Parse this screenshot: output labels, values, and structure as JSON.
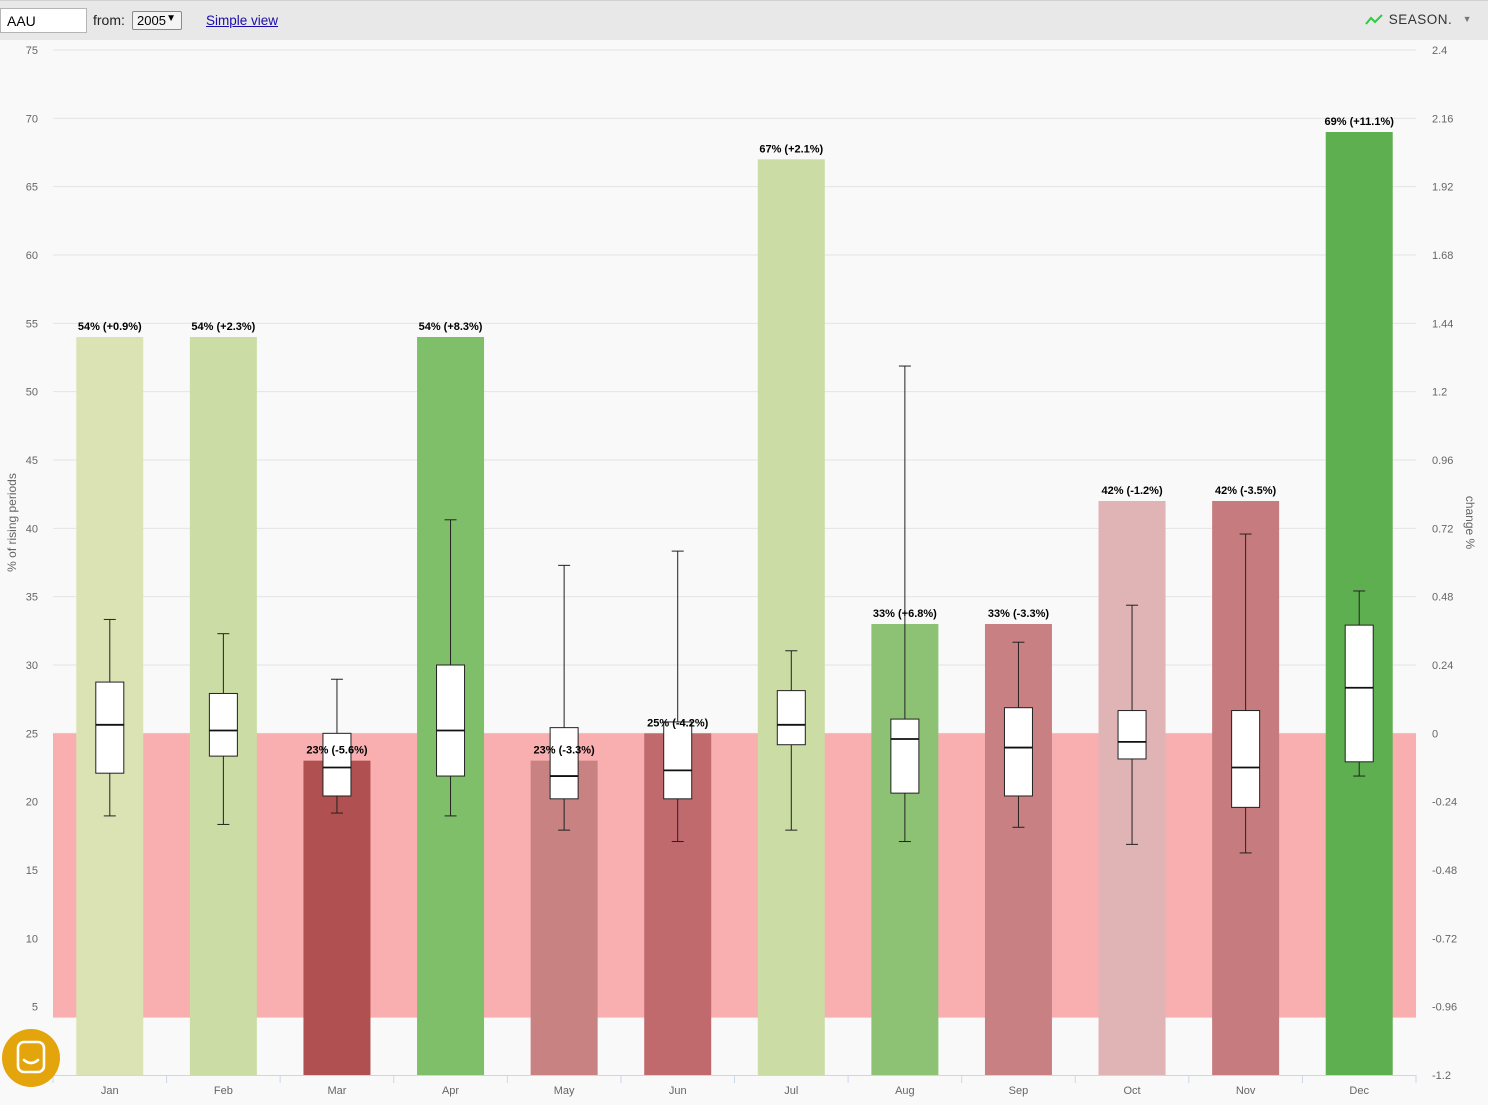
{
  "toolbar": {
    "ticker_value": "AAU",
    "from_label": "from:",
    "from_year": "2005",
    "simple_view_link": "Simple view",
    "season_button": "SEASON."
  },
  "colors": {
    "danger_band": "#f9aeb0",
    "season_icon": "#2ecc40",
    "chat_button": "#e4a40c"
  },
  "chart_data": {
    "type": "bar",
    "categories": [
      "Jan",
      "Feb",
      "Mar",
      "Apr",
      "May",
      "Jun",
      "Jul",
      "Aug",
      "Sep",
      "Oct",
      "Nov",
      "Dec"
    ],
    "ylabel_left": "% of rising periods",
    "ylabel_right": "change %",
    "left_axis": {
      "min": 0,
      "max": 75,
      "ticks": [
        5,
        10,
        15,
        20,
        25,
        30,
        35,
        40,
        45,
        50,
        55,
        60,
        65,
        70,
        75
      ]
    },
    "right_axis": {
      "min": -1.2,
      "max": 2.4,
      "ticks": [
        "-1.2",
        "-0.96",
        "-0.72",
        "-0.48",
        "-0.24",
        "0",
        "0.24",
        "0.48",
        "0.72",
        "0.96",
        "1.2",
        "1.44",
        "1.68",
        "1.92",
        "2.16",
        "2.4"
      ]
    },
    "band": {
      "from": 4.2,
      "to": 25,
      "axis": "left"
    },
    "grid": true,
    "bars": [
      {
        "month": "Jan",
        "pct": 54,
        "label": "54% (+0.9%)",
        "color": "#dbe3b4"
      },
      {
        "month": "Feb",
        "pct": 54,
        "label": "54% (+2.3%)",
        "color": "#cbdca4"
      },
      {
        "month": "Mar",
        "pct": 23,
        "label": "23% (-5.6%)",
        "color": "#b05050"
      },
      {
        "month": "Apr",
        "pct": 54,
        "label": "54% (+8.3%)",
        "color": "#80bf6a"
      },
      {
        "month": "May",
        "pct": 23,
        "label": "23% (-3.3%)",
        "color": "#c98282"
      },
      {
        "month": "Jun",
        "pct": 25,
        "label": "25% (-4.2%)",
        "color": "#c06a6e"
      },
      {
        "month": "Jul",
        "pct": 67,
        "label": "67% (+2.1%)",
        "color": "#cbdca4"
      },
      {
        "month": "Aug",
        "pct": 33,
        "label": "33% (+6.8%)",
        "color": "#8dc274"
      },
      {
        "month": "Sep",
        "pct": 33,
        "label": "33% (-3.3%)",
        "color": "#c98082"
      },
      {
        "month": "Oct",
        "pct": 42,
        "label": "42% (-1.2%)",
        "color": "#e0b3b5"
      },
      {
        "month": "Nov",
        "pct": 42,
        "label": "42% (-3.5%)",
        "color": "#c67c7e"
      },
      {
        "month": "Dec",
        "pct": 69,
        "label": "69% (+11.1%)",
        "color": "#5eaf50"
      }
    ],
    "boxplots": [
      {
        "month": "Jan",
        "min": -0.29,
        "q1": -0.14,
        "median": 0.03,
        "q3": 0.18,
        "max": 0.4
      },
      {
        "month": "Feb",
        "min": -0.32,
        "q1": -0.08,
        "median": 0.01,
        "q3": 0.14,
        "max": 0.35
      },
      {
        "month": "Mar",
        "min": -0.28,
        "q1": -0.22,
        "median": -0.12,
        "q3": 0.0,
        "max": 0.19
      },
      {
        "month": "Apr",
        "min": -0.29,
        "q1": -0.15,
        "median": 0.01,
        "q3": 0.24,
        "max": 0.75
      },
      {
        "month": "May",
        "min": -0.34,
        "q1": -0.23,
        "median": -0.15,
        "q3": 0.02,
        "max": 0.59
      },
      {
        "month": "Jun",
        "min": -0.38,
        "q1": -0.23,
        "median": -0.13,
        "q3": 0.04,
        "max": 0.64
      },
      {
        "month": "Jul",
        "min": -0.34,
        "q1": -0.04,
        "median": 0.03,
        "q3": 0.15,
        "max": 0.29
      },
      {
        "month": "Aug",
        "min": -0.38,
        "q1": -0.21,
        "median": -0.02,
        "q3": 0.05,
        "max": 1.29
      },
      {
        "month": "Sep",
        "min": -0.33,
        "q1": -0.22,
        "median": -0.05,
        "q3": 0.09,
        "max": 0.32
      },
      {
        "month": "Oct",
        "min": -0.39,
        "q1": -0.09,
        "median": -0.03,
        "q3": 0.08,
        "max": 0.45
      },
      {
        "month": "Nov",
        "min": -0.42,
        "q1": -0.26,
        "median": -0.12,
        "q3": 0.08,
        "max": 0.7
      },
      {
        "month": "Dec",
        "min": -0.15,
        "q1": -0.1,
        "median": 0.16,
        "q3": 0.38,
        "max": 0.5
      }
    ]
  }
}
